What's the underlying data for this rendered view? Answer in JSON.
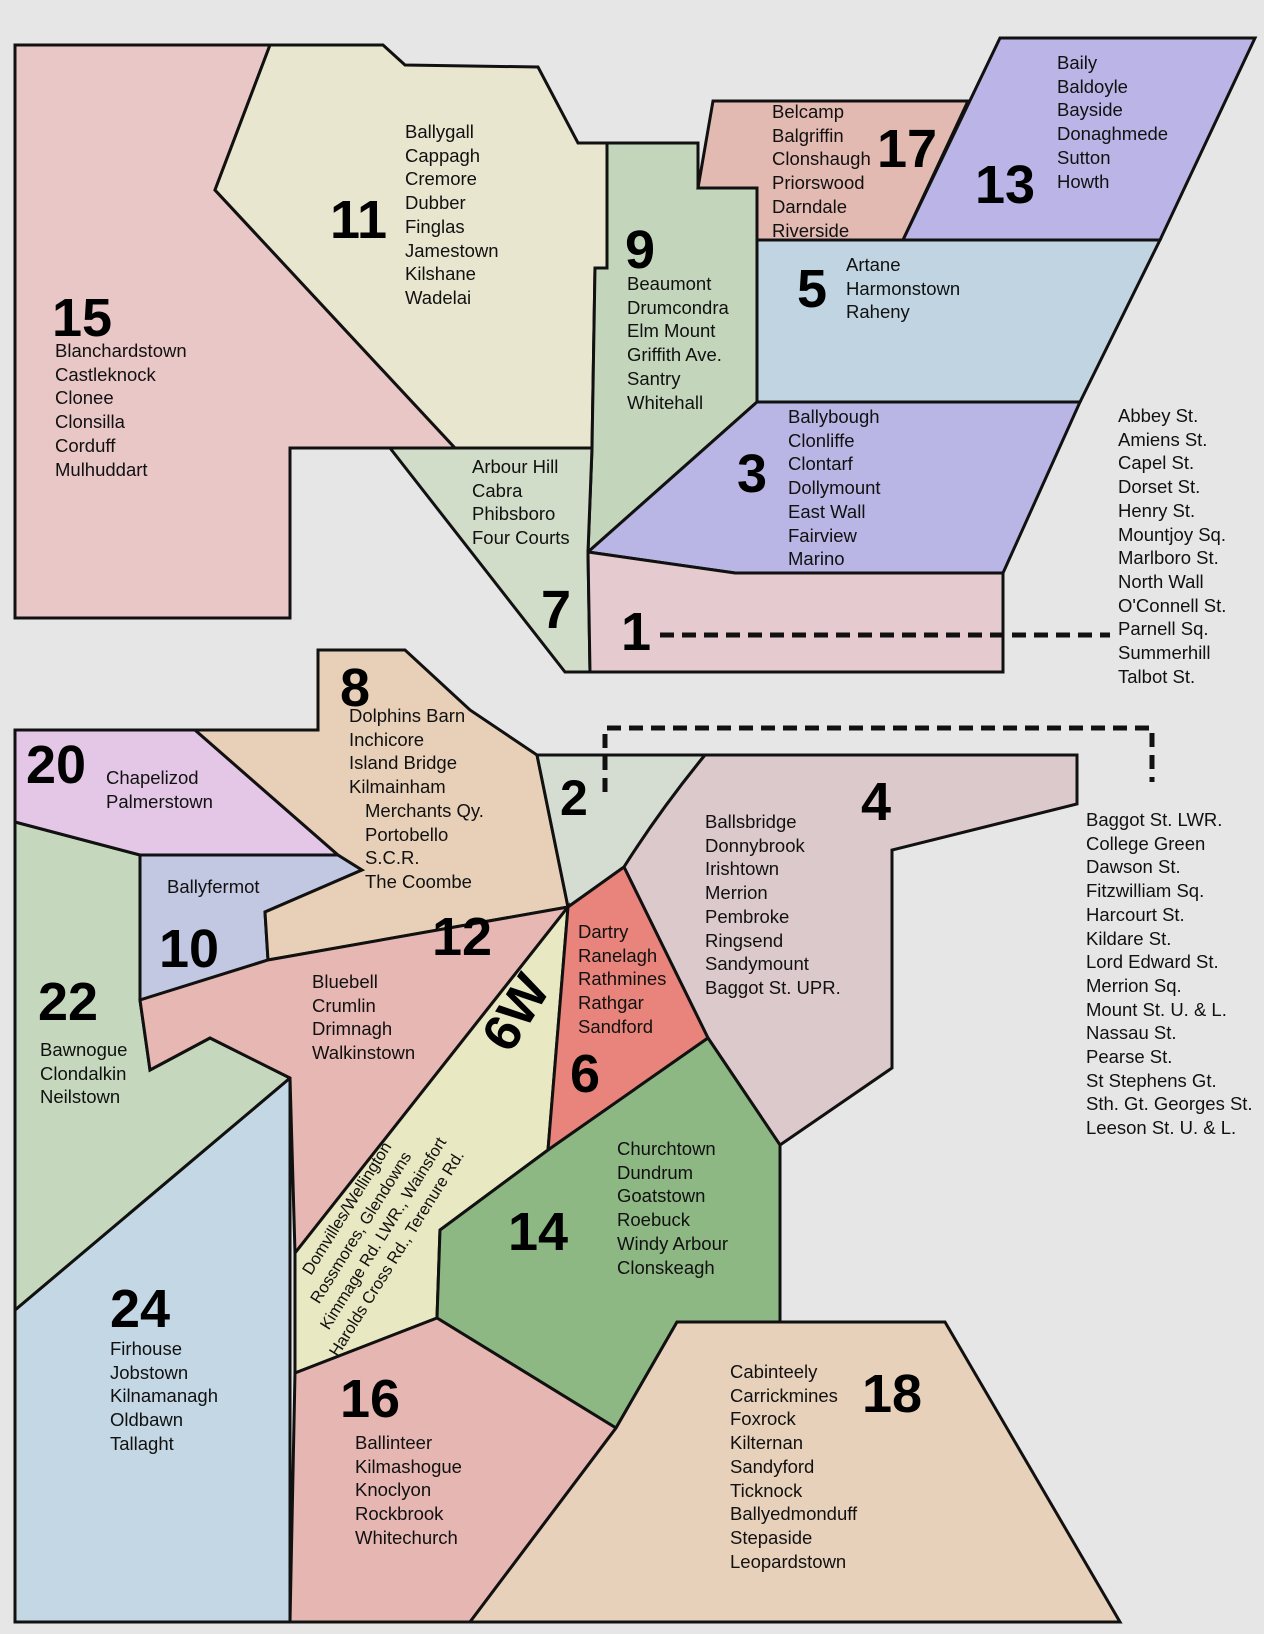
{
  "colors": {
    "background": "#e6e6e6",
    "d15": "#e8c7c6",
    "d11": "#e9e6cf",
    "d9": "#c3d6bb",
    "d17": "#e3bab2",
    "d13": "#bbb4e6",
    "d5": "#c1d4e1",
    "d3": "#b9b5e4",
    "d1": "#e5cbcf",
    "d7": "#d1dcc9",
    "d8": "#e8d0b8",
    "d20": "#e4c6e6",
    "d2": "#d5ddd2",
    "d4": "#dcc9cc",
    "d10": "#c2c7e2",
    "d12": "#e7b7b3",
    "d22": "#c5d8be",
    "d6w": "#e8e8c2",
    "d6": "#e8847b",
    "d14": "#8db783",
    "d24": "#c4d7e4",
    "d16": "#e6b6b2",
    "d18": "#e8d1bb"
  },
  "districts": [
    {
      "id": "15",
      "label": "15",
      "areas": [
        "Blanchardstown",
        "Castleknock",
        "Clonee",
        "Clonsilla",
        "Corduff",
        "Mulhuddart"
      ]
    },
    {
      "id": "11",
      "label": "11",
      "areas": [
        "Ballygall",
        "Cappagh",
        "Cremore",
        "Dubber",
        "Finglas",
        "Jamestown",
        "Kilshane",
        "Wadelai"
      ]
    },
    {
      "id": "9",
      "label": "9",
      "areas": [
        "Beaumont",
        "Drumcondra",
        "Elm Mount",
        "Griffith Ave.",
        "Santry",
        "Whitehall"
      ]
    },
    {
      "id": "17",
      "label": "17",
      "areas": [
        "Belcamp",
        "Balgriffin",
        "Clonshaugh",
        "Priorswood",
        "Darndale",
        "Riverside"
      ]
    },
    {
      "id": "13",
      "label": "13",
      "areas": [
        "Baily",
        "Baldoyle",
        "Bayside",
        "Donaghmede",
        "Sutton",
        "Howth"
      ]
    },
    {
      "id": "5",
      "label": "5",
      "areas": [
        "Artane",
        "Harmonstown",
        "Raheny"
      ]
    },
    {
      "id": "3",
      "label": "3",
      "areas": [
        "Ballybough",
        "Clonliffe",
        "Clontarf",
        "Dollymount",
        "East Wall",
        "Fairview",
        "Marino"
      ]
    },
    {
      "id": "7",
      "label": "7",
      "areas": [
        "Arbour Hill",
        "Cabra",
        "Phibsboro",
        "Four Courts"
      ]
    },
    {
      "id": "1",
      "label": "1",
      "areas": [
        "Abbey St.",
        "Amiens St.",
        "Capel St.",
        "Dorset St.",
        "Henry St.",
        "Mountjoy Sq.",
        "Marlboro St.",
        "North Wall",
        "O'Connell St.",
        "Parnell Sq.",
        "Summerhill",
        "Talbot St."
      ]
    },
    {
      "id": "8",
      "label": "8",
      "areas": [
        "Dolphins Barn",
        "Inchicore",
        "Island Bridge",
        "Kilmainham",
        "Merchants Qy.",
        "Portobello",
        "S.C.R.",
        "The Coombe"
      ]
    },
    {
      "id": "20",
      "label": "20",
      "areas": [
        "Chapelizod",
        "Palmerstown"
      ]
    },
    {
      "id": "2",
      "label": "2",
      "areas": [
        "Baggot St. LWR.",
        "College Green",
        "Dawson St.",
        "Fitzwilliam Sq.",
        "Harcourt St.",
        "Kildare St.",
        "Lord Edward St.",
        "Merrion Sq.",
        "Mount St. U. & L.",
        "Nassau St.",
        "Pearse St.",
        "St Stephens Gt.",
        "Sth. Gt. Georges St.",
        "Leeson St. U. & L."
      ]
    },
    {
      "id": "4",
      "label": "4",
      "areas": [
        "Ballsbridge",
        "Donnybrook",
        "Irishtown",
        "Merrion",
        "Pembroke",
        "Ringsend",
        "Sandymount",
        "Baggot St. UPR."
      ]
    },
    {
      "id": "10",
      "label": "10",
      "areas": [
        "Ballyfermot"
      ]
    },
    {
      "id": "12",
      "label": "12",
      "areas": [
        "Bluebell",
        "Crumlin",
        "Drimnagh",
        "Walkinstown"
      ]
    },
    {
      "id": "22",
      "label": "22",
      "areas": [
        "Bawnogue",
        "Clondalkin",
        "Neilstown"
      ]
    },
    {
      "id": "6W",
      "label": "6W",
      "areas": [
        "Domvilles/Wellington",
        "Rossmores, Glendowns",
        "Kimmage Rd. LWR., Wainsfort",
        "Harolds Cross Rd., Terenure Rd."
      ]
    },
    {
      "id": "6",
      "label": "6",
      "areas": [
        "Dartry",
        "Ranelagh",
        "Rathmines",
        "Rathgar",
        "Sandford"
      ]
    },
    {
      "id": "14",
      "label": "14",
      "areas": [
        "Churchtown",
        "Dundrum",
        "Goatstown",
        "Roebuck",
        "Windy Arbour",
        "Clonskeagh"
      ]
    },
    {
      "id": "24",
      "label": "24",
      "areas": [
        "Firhouse",
        "Jobstown",
        "Kilnamanagh",
        "Oldbawn",
        "Tallaght"
      ]
    },
    {
      "id": "16",
      "label": "16",
      "areas": [
        "Ballinteer",
        "Kilmashogue",
        "Knoclyon",
        "Rockbrook",
        "Whitechurch"
      ]
    },
    {
      "id": "18",
      "label": "18",
      "areas": [
        "Cabinteely",
        "Carrickmines",
        "Foxrock",
        "Kilternan",
        "Sandyford",
        "Ticknock",
        "Ballyedmonduff",
        "Stepaside",
        "Leopardstown"
      ]
    }
  ]
}
